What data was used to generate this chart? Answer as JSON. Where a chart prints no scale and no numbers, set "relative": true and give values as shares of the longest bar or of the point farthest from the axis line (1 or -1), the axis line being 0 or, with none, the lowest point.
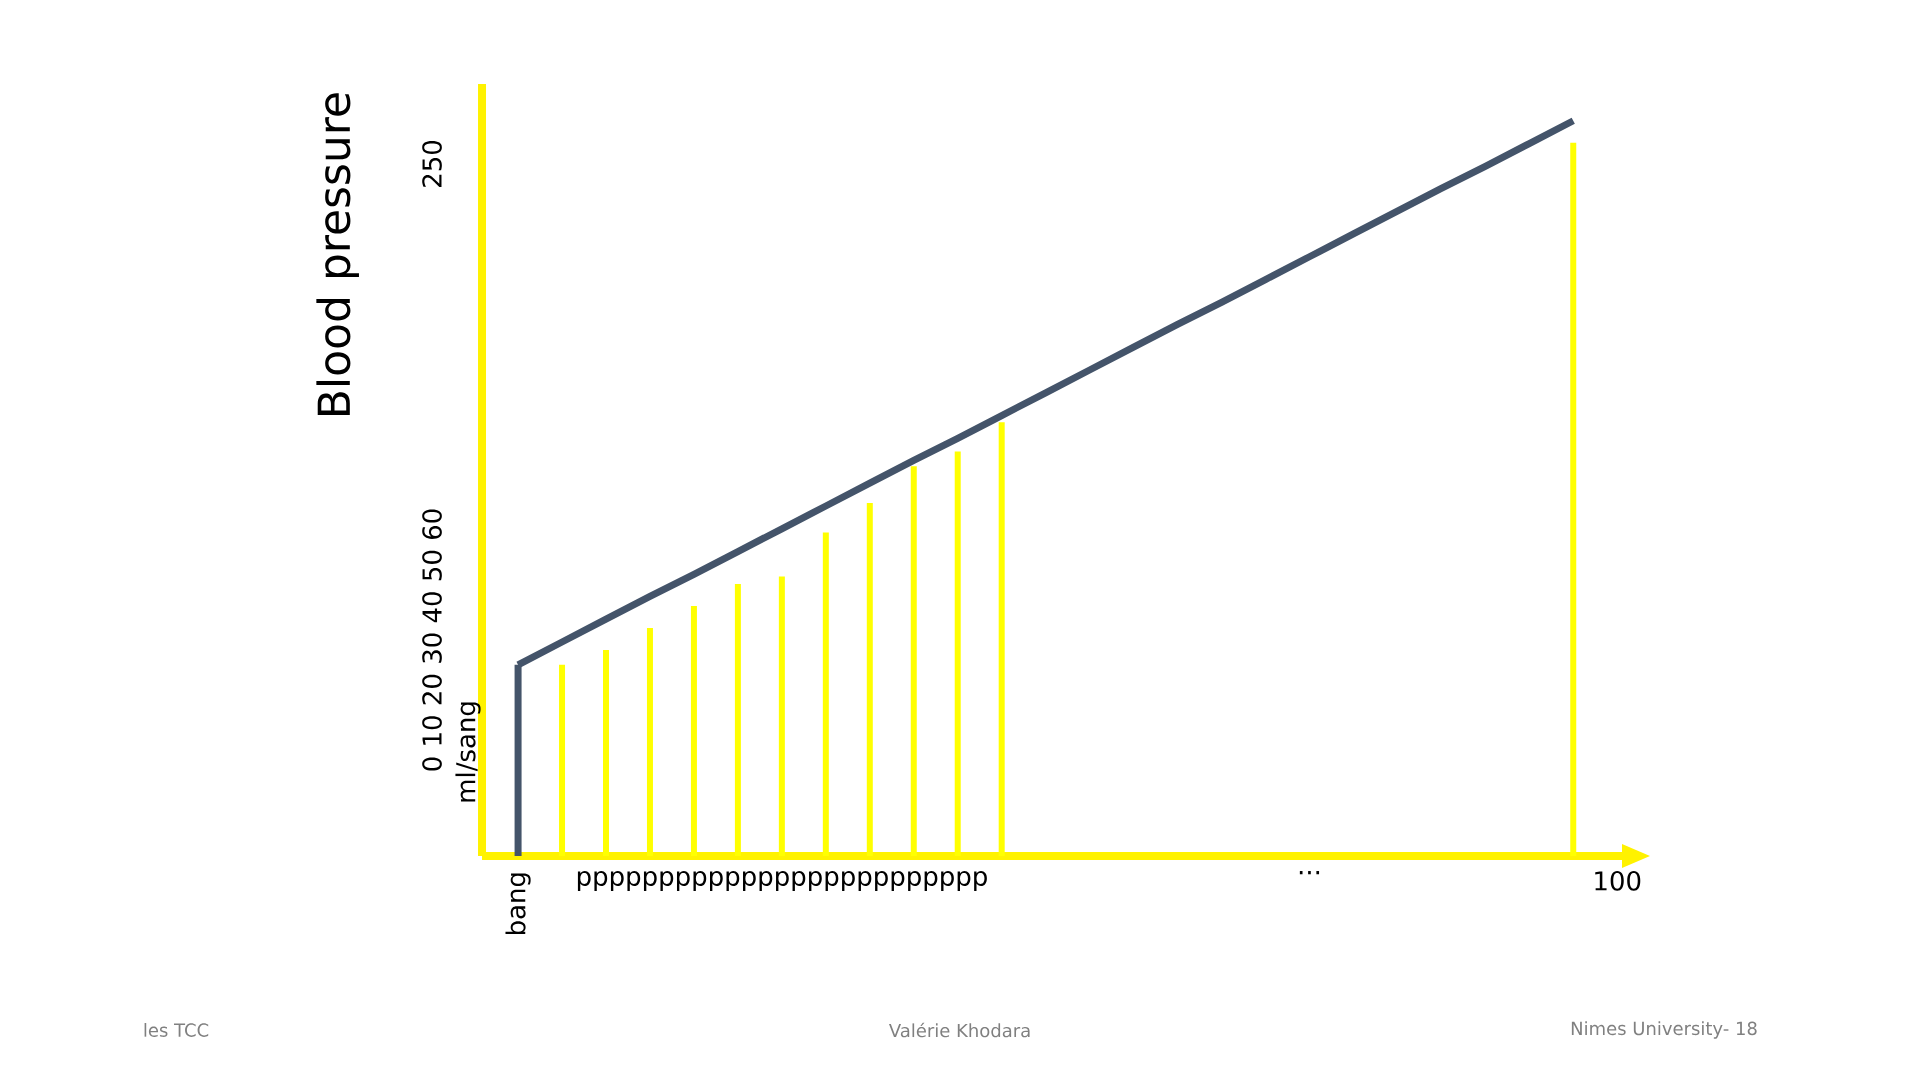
{
  "chart_data": {
    "type": "bar",
    "relative": true,
    "ylabel": "Blood pressure",
    "categories": [
      "bang",
      null,
      null,
      null,
      null,
      null,
      "ppppppppppppppppppppppppp",
      null,
      null,
      null,
      null,
      null,
      null,
      null,
      null,
      null,
      null,
      null,
      "...",
      null,
      null,
      null,
      null,
      null,
      null,
      "100"
    ],
    "series": [
      {
        "colors": [
          "#44546a",
          "#ffff00",
          "#ffff00",
          "#ffff00",
          "#ffff00",
          "#ffff00",
          "#ffff00",
          "#ffff00",
          "#ffff00",
          "#ffff00",
          "#ffff00",
          "#ffff00",
          "#ffff00",
          "#ffff00",
          "#ffff00",
          "#ffff00",
          "#ffff00",
          "#ffff00",
          "#ffff00",
          "#ffff00",
          "#ffff00",
          "#ffff00",
          "#ffff00",
          "#ffff00",
          "#ffff00",
          "#ffff00"
        ],
        "values": [
          0.26,
          0.26,
          0.28,
          0.31,
          0.34,
          0.37,
          0.38,
          0.44,
          0.48,
          0.53,
          0.55,
          0.59,
          null,
          null,
          null,
          null,
          null,
          null,
          null,
          null,
          null,
          null,
          null,
          null,
          0.97,
          null
        ]
      },
      {
        "type": "line",
        "color": "#44546a",
        "values": [
          0.26,
          0.291,
          0.322,
          0.353,
          0.383,
          0.414,
          0.445,
          0.476,
          0.507,
          0.538,
          0.568,
          0.599,
          0.63,
          0.661,
          0.692,
          0.723,
          0.753,
          0.784,
          0.815,
          0.846,
          0.877,
          0.908,
          0.938,
          0.969,
          1.0,
          null
        ]
      }
    ],
    "annotations": [
      "0 10 20 30 40 50 60",
      "250",
      "ml/sang",
      "les TCC",
      "Valérie Khodara",
      "Nimes University- 18"
    ]
  }
}
